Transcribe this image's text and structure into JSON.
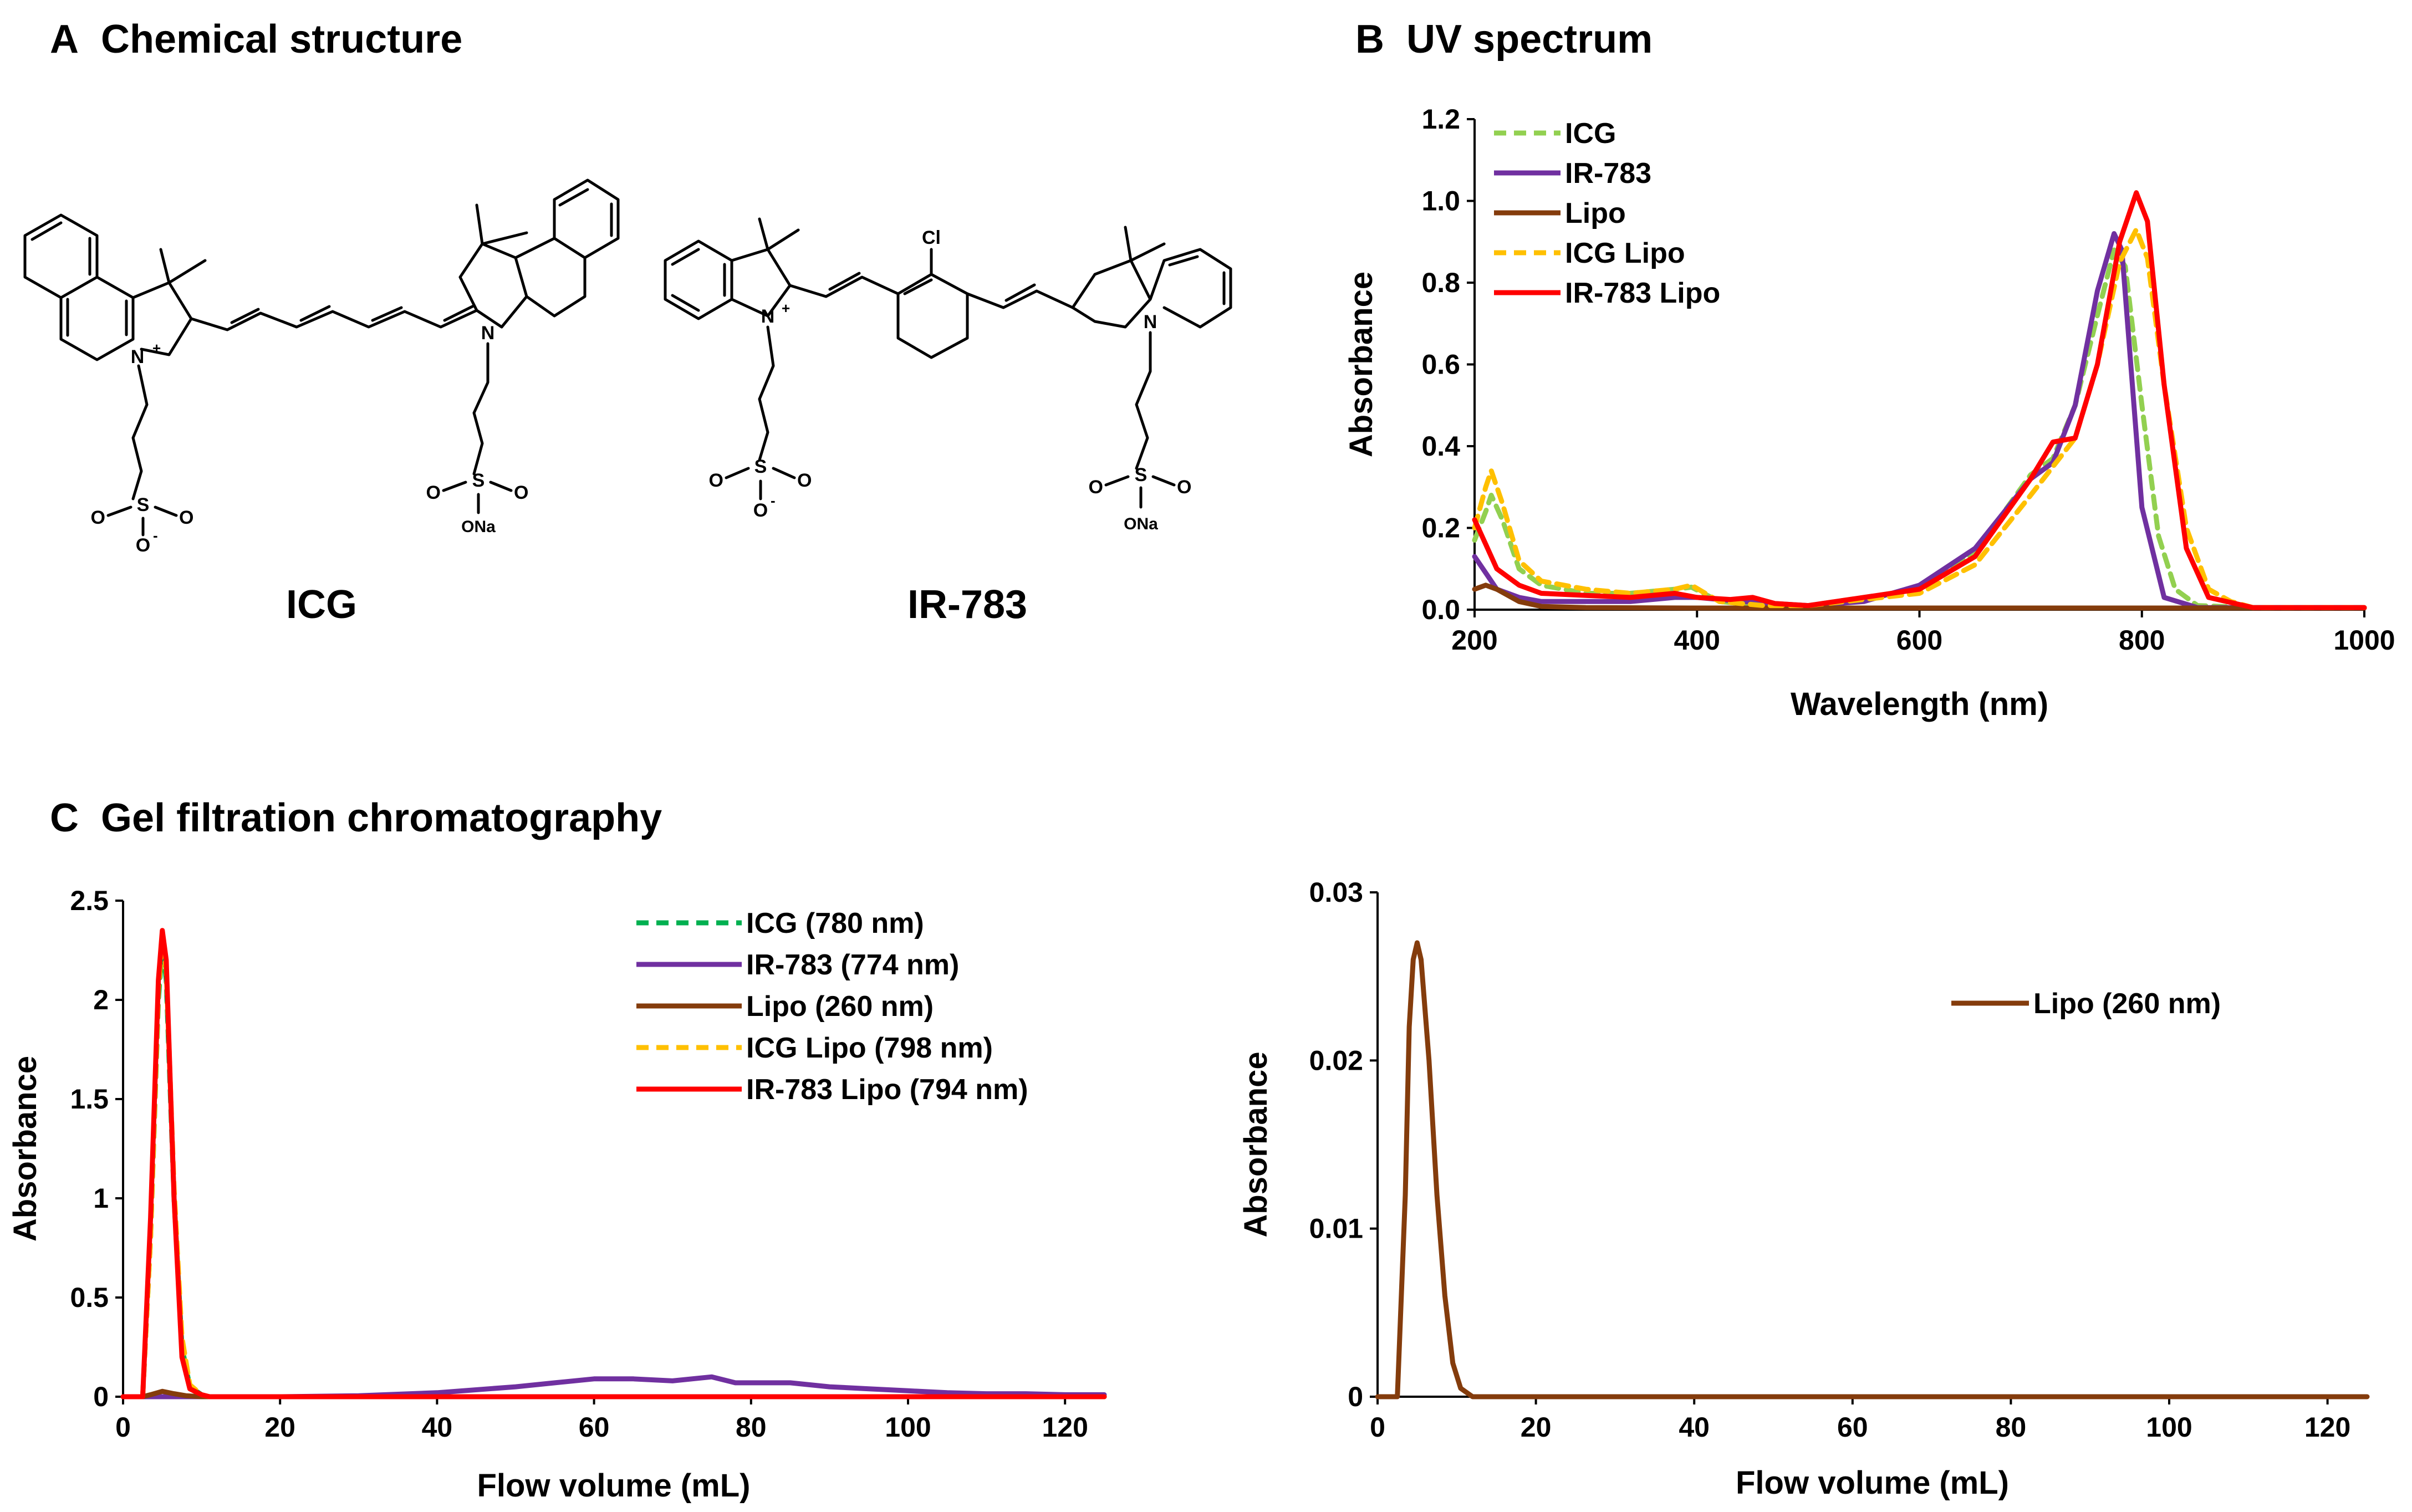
{
  "panels": {
    "a": {
      "letter": "A",
      "title": "Chemical structure"
    },
    "b": {
      "letter": "B",
      "title": "UV spectrum"
    },
    "c": {
      "letter": "C",
      "title": "Gel filtration chromatography"
    }
  },
  "structures": {
    "icg": {
      "name": "ICG",
      "atoms": {
        "n_plus": "N",
        "plus": "+",
        "n": "N",
        "s": "S",
        "o": "O",
        "o_minus": "O",
        "minus": "-",
        "ona": "ONa"
      }
    },
    "ir783": {
      "name": "IR-783",
      "atoms": {
        "cl": "Cl",
        "n_plus": "N",
        "plus": "+",
        "n": "N",
        "s": "S",
        "o": "O",
        "o_minus": "O",
        "minus": "-",
        "ona": "ONa"
      }
    }
  },
  "chart_data": [
    {
      "id": "uv",
      "type": "line",
      "title": "UV spectrum",
      "xlabel": "Wavelength (nm)",
      "ylabel": "Absorbance",
      "xlim": [
        200,
        1000
      ],
      "ylim": [
        0,
        1.2
      ],
      "xticks": [
        "200",
        "400",
        "600",
        "800",
        "1000"
      ],
      "yticks": [
        "0.0",
        "0.2",
        "0.4",
        "0.6",
        "0.8",
        "1.0",
        "1.2"
      ],
      "legend": "top-left",
      "series": [
        {
          "name": "ICG",
          "color": "#92d050",
          "dash": true,
          "x": [
            200,
            210,
            215,
            225,
            240,
            260,
            300,
            340,
            380,
            395,
            420,
            460,
            500,
            600,
            650,
            700,
            720,
            740,
            760,
            775,
            785,
            800,
            815,
            830,
            850,
            900,
            1000
          ],
          "y": [
            0.17,
            0.24,
            0.28,
            0.22,
            0.1,
            0.06,
            0.04,
            0.04,
            0.05,
            0.055,
            0.02,
            0.01,
            0.01,
            0.05,
            0.14,
            0.33,
            0.37,
            0.5,
            0.72,
            0.88,
            0.84,
            0.5,
            0.18,
            0.05,
            0.01,
            0.005,
            0.005
          ]
        },
        {
          "name": "IR-783",
          "color": "#7030a0",
          "dash": false,
          "x": [
            200,
            210,
            220,
            240,
            260,
            300,
            340,
            380,
            400,
            440,
            500,
            550,
            600,
            650,
            700,
            720,
            740,
            760,
            775,
            782,
            790,
            800,
            820,
            850,
            1000
          ],
          "y": [
            0.13,
            0.09,
            0.05,
            0.03,
            0.02,
            0.02,
            0.02,
            0.03,
            0.03,
            0.02,
            0.01,
            0.02,
            0.06,
            0.15,
            0.32,
            0.36,
            0.5,
            0.78,
            0.92,
            0.88,
            0.6,
            0.25,
            0.03,
            0.005,
            0.005
          ]
        },
        {
          "name": "Lipo",
          "color": "#843c0c",
          "dash": false,
          "x": [
            200,
            210,
            220,
            240,
            260,
            300,
            400,
            600,
            800,
            1000
          ],
          "y": [
            0.05,
            0.06,
            0.05,
            0.02,
            0.008,
            0.005,
            0.004,
            0.004,
            0.004,
            0.004
          ]
        },
        {
          "name": "ICG Lipo",
          "color": "#ffc000",
          "dash": true,
          "x": [
            200,
            210,
            215,
            225,
            240,
            260,
            300,
            340,
            380,
            395,
            420,
            460,
            500,
            600,
            650,
            700,
            740,
            760,
            780,
            795,
            805,
            820,
            840,
            860,
            880,
            900,
            1000
          ],
          "y": [
            0.2,
            0.3,
            0.34,
            0.26,
            0.12,
            0.07,
            0.05,
            0.04,
            0.05,
            0.06,
            0.02,
            0.01,
            0.01,
            0.04,
            0.11,
            0.28,
            0.42,
            0.6,
            0.85,
            0.93,
            0.86,
            0.55,
            0.2,
            0.05,
            0.02,
            0.005,
            0.005
          ]
        },
        {
          "name": "IR-783  Lipo",
          "color": "#ff0000",
          "dash": false,
          "x": [
            200,
            210,
            220,
            240,
            260,
            300,
            340,
            380,
            400,
            430,
            450,
            470,
            500,
            600,
            650,
            700,
            720,
            740,
            760,
            780,
            795,
            805,
            820,
            840,
            860,
            900,
            1000
          ],
          "y": [
            0.22,
            0.16,
            0.1,
            0.06,
            0.04,
            0.035,
            0.03,
            0.04,
            0.03,
            0.025,
            0.03,
            0.015,
            0.01,
            0.05,
            0.13,
            0.32,
            0.41,
            0.42,
            0.6,
            0.9,
            1.02,
            0.95,
            0.55,
            0.15,
            0.03,
            0.005,
            0.005
          ]
        }
      ]
    },
    {
      "id": "gfc",
      "type": "line",
      "title": "Gel filtration chromatography",
      "xlabel": "Flow volume (mL)",
      "ylabel": "Absorbance",
      "xlim": [
        0,
        125
      ],
      "ylim": [
        0,
        2.5
      ],
      "xticks": [
        "0",
        "20",
        "40",
        "60",
        "80",
        "100",
        "120"
      ],
      "yticks": [
        "0",
        "0.5",
        "1",
        "1.5",
        "2",
        "2.5"
      ],
      "legend": "top-right",
      "series": [
        {
          "name": "ICG  (780 nm)",
          "color": "#00b050",
          "dash": true,
          "x": [
            0,
            2.5,
            3.5,
            4.5,
            5,
            5.5,
            6.5,
            7.5,
            8.5,
            10,
            11,
            20,
            60,
            125
          ],
          "y": [
            0,
            0,
            0.8,
            2.0,
            2.28,
            2.1,
            1.0,
            0.25,
            0.05,
            0.01,
            0,
            0,
            0,
            0
          ]
        },
        {
          "name": "IR-783 (774 nm)",
          "color": "#7030a0",
          "dash": false,
          "x": [
            0,
            10,
            20,
            30,
            40,
            50,
            55,
            60,
            65,
            70,
            75,
            78,
            85,
            90,
            95,
            100,
            105,
            110,
            115,
            120,
            125
          ],
          "y": [
            0,
            0,
            0,
            0.005,
            0.02,
            0.05,
            0.07,
            0.09,
            0.09,
            0.08,
            0.1,
            0.07,
            0.07,
            0.05,
            0.04,
            0.03,
            0.02,
            0.015,
            0.015,
            0.01,
            0.01
          ]
        },
        {
          "name": "Lipo (260 nm)",
          "color": "#843c0c",
          "dash": false,
          "x": [
            0,
            2.5,
            3.5,
            5,
            6.5,
            8,
            10,
            125
          ],
          "y": [
            0,
            0,
            0.01,
            0.027,
            0.015,
            0.005,
            0,
            0
          ]
        },
        {
          "name": "ICG Lipo (798 nm)",
          "color": "#ffc000",
          "dash": true,
          "x": [
            0,
            2.5,
            3.5,
            4.5,
            5,
            5.5,
            6.5,
            7.5,
            8.5,
            10,
            11,
            20,
            125
          ],
          "y": [
            0,
            0,
            0.8,
            2.05,
            2.3,
            2.15,
            1.05,
            0.3,
            0.06,
            0.01,
            0,
            0,
            0
          ]
        },
        {
          "name": "IR-783 Lipo (794 nm)",
          "color": "#ff0000",
          "dash": false,
          "x": [
            0,
            2.5,
            3.5,
            4.5,
            5,
            5.5,
            6.5,
            7.5,
            8.5,
            10,
            11,
            20,
            60,
            125
          ],
          "y": [
            0,
            0,
            0.9,
            2.1,
            2.35,
            2.2,
            1.0,
            0.2,
            0.04,
            0.01,
            0,
            0,
            0,
            0
          ]
        }
      ]
    },
    {
      "id": "lipo",
      "type": "line",
      "title": "",
      "xlabel": "Flow volume (mL)",
      "ylabel": "Absorbance",
      "xlim": [
        0,
        125
      ],
      "ylim": [
        0,
        0.03
      ],
      "xticks": [
        "0",
        "20",
        "40",
        "60",
        "80",
        "100",
        "120"
      ],
      "yticks": [
        "0",
        "0.01",
        "0.02",
        "0.03"
      ],
      "legend": "right",
      "series": [
        {
          "name": "Lipo (260 nm)",
          "color": "#843c0c",
          "dash": false,
          "x": [
            0,
            2.5,
            3.5,
            4,
            4.5,
            5,
            5.5,
            6.5,
            7.5,
            8.5,
            9.5,
            10.5,
            12,
            125
          ],
          "y": [
            0,
            0,
            0.012,
            0.022,
            0.026,
            0.027,
            0.026,
            0.02,
            0.012,
            0.006,
            0.002,
            0.0005,
            0,
            0
          ]
        }
      ]
    }
  ]
}
